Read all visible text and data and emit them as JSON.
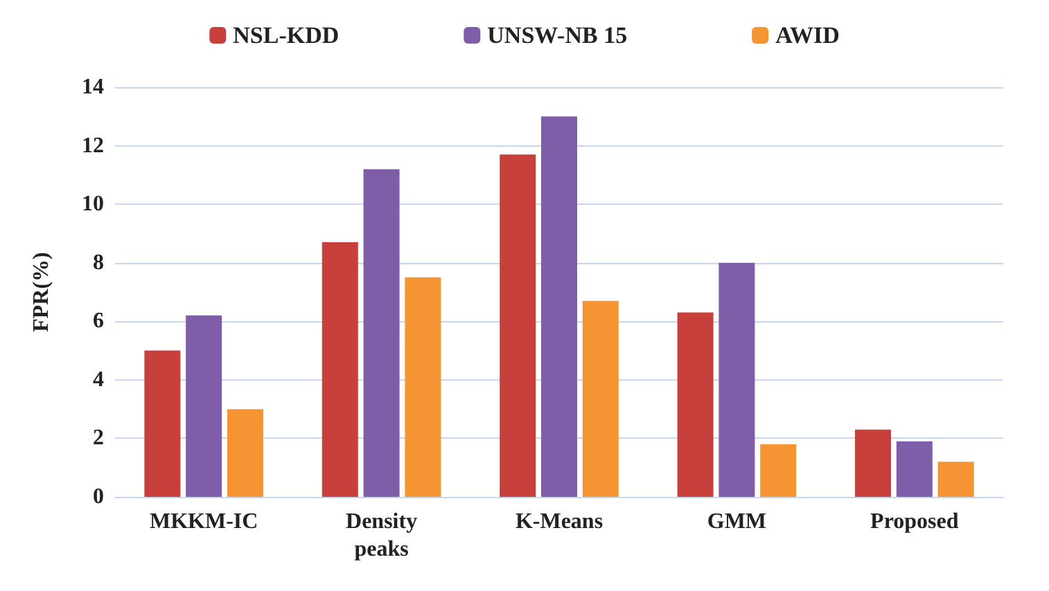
{
  "chart_data": {
    "type": "bar",
    "ylabel": "FPR(%)",
    "categories": [
      "MKKM-IC",
      "Density\npeaks",
      "K-Means",
      "GMM",
      "Proposed"
    ],
    "series": [
      {
        "name": "NSL-KDD",
        "color": "#c8403c",
        "values": [
          5.0,
          8.7,
          11.7,
          6.3,
          2.3
        ]
      },
      {
        "name": "UNSW-NB 15",
        "color": "#7e5ea8",
        "values": [
          6.2,
          11.2,
          13.0,
          8.0,
          1.9
        ]
      },
      {
        "name": "AWID",
        "color": "#f59432",
        "values": [
          3.0,
          7.5,
          6.7,
          1.8,
          1.2
        ]
      }
    ],
    "ylim": [
      0,
      14
    ],
    "yticks": [
      0,
      2,
      4,
      6,
      8,
      10,
      12,
      14
    ],
    "grid": "y",
    "legend": "top"
  }
}
